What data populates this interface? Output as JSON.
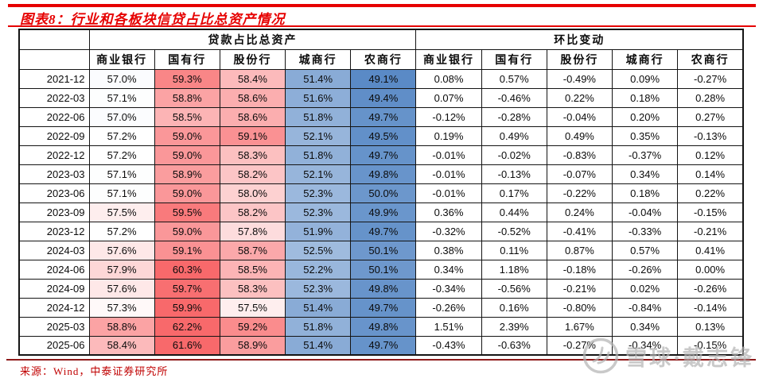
{
  "title": "图表8：行业和各板块信贷占比总资产情况",
  "source": "来源：Wind，中泰证券研究所",
  "watermark": "雪球·戴志锋",
  "colors": {
    "accent": "#e60000",
    "divider": "#8e1a1a",
    "source": "#c00000",
    "border": "#141414",
    "watermark": "#b3b3b3"
  },
  "color_scale": {
    "red": "#f8696b",
    "blue": "#5a8ac6",
    "white": "#ffffff",
    "mid_value": 57.2,
    "red_max_value": 59.8,
    "blue_min_value": 49.1
  },
  "chart_data": {
    "type": "table",
    "title": "图表8：行业和各板块信贷占比总资产情况",
    "group_headers": [
      "贷款占比总资产",
      "环比变动"
    ],
    "columns": [
      "商业银行",
      "国有行",
      "股份行",
      "城商行",
      "农商行"
    ],
    "dates": [
      "2021-12",
      "2022-03",
      "2022-06",
      "2022-09",
      "2022-12",
      "2023-03",
      "2023-06",
      "2023-09",
      "2023-12",
      "2024-03",
      "2024-06",
      "2024-09",
      "2024-12",
      "2025-03",
      "2025-06"
    ],
    "loan_ratio_pct": [
      [
        57.0,
        59.3,
        58.4,
        51.4,
        49.1
      ],
      [
        57.1,
        58.8,
        58.6,
        51.6,
        49.4
      ],
      [
        57.0,
        58.5,
        58.6,
        51.8,
        49.7
      ],
      [
        57.2,
        59.0,
        59.1,
        52.1,
        49.5
      ],
      [
        57.2,
        59.0,
        58.3,
        51.8,
        49.7
      ],
      [
        57.1,
        58.9,
        58.2,
        52.1,
        49.8
      ],
      [
        57.1,
        59.0,
        58.0,
        52.3,
        50.0
      ],
      [
        57.5,
        59.5,
        58.2,
        52.3,
        49.9
      ],
      [
        57.2,
        59.0,
        57.8,
        51.9,
        49.7
      ],
      [
        57.6,
        59.1,
        58.7,
        52.5,
        50.1
      ],
      [
        57.9,
        60.3,
        58.5,
        52.2,
        50.1
      ],
      [
        57.6,
        59.7,
        58.3,
        52.3,
        49.8
      ],
      [
        57.3,
        59.9,
        57.5,
        51.4,
        49.7
      ],
      [
        58.8,
        62.2,
        59.2,
        51.8,
        49.8
      ],
      [
        58.4,
        61.6,
        58.9,
        51.4,
        49.7
      ]
    ],
    "qoq_change_pct": [
      [
        0.08,
        0.57,
        -0.49,
        0.09,
        -0.27
      ],
      [
        0.07,
        -0.46,
        0.22,
        0.18,
        0.28
      ],
      [
        -0.12,
        -0.28,
        -0.04,
        0.2,
        0.27
      ],
      [
        0.19,
        0.49,
        0.49,
        0.35,
        -0.13
      ],
      [
        -0.01,
        -0.02,
        -0.83,
        -0.37,
        0.12
      ],
      [
        -0.01,
        -0.13,
        -0.07,
        0.34,
        0.14
      ],
      [
        -0.01,
        0.17,
        -0.22,
        0.18,
        0.22
      ],
      [
        0.36,
        0.44,
        0.24,
        -0.04,
        -0.15
      ],
      [
        -0.32,
        -0.52,
        -0.41,
        -0.33,
        -0.21
      ],
      [
        0.38,
        0.11,
        0.87,
        0.57,
        0.41
      ],
      [
        0.34,
        1.18,
        -0.18,
        -0.26,
        0.0
      ],
      [
        -0.34,
        -0.56,
        -0.21,
        0.02,
        -0.26
      ],
      [
        -0.26,
        0.16,
        -0.8,
        -0.84,
        -0.14
      ],
      [
        1.51,
        2.39,
        1.67,
        0.34,
        0.13
      ],
      [
        -0.43,
        -0.63,
        -0.27,
        -0.34,
        -0.15
      ]
    ],
    "legend_note": "left block cells use red(high)-white-blue(low) 3-color scale; right block plain"
  }
}
